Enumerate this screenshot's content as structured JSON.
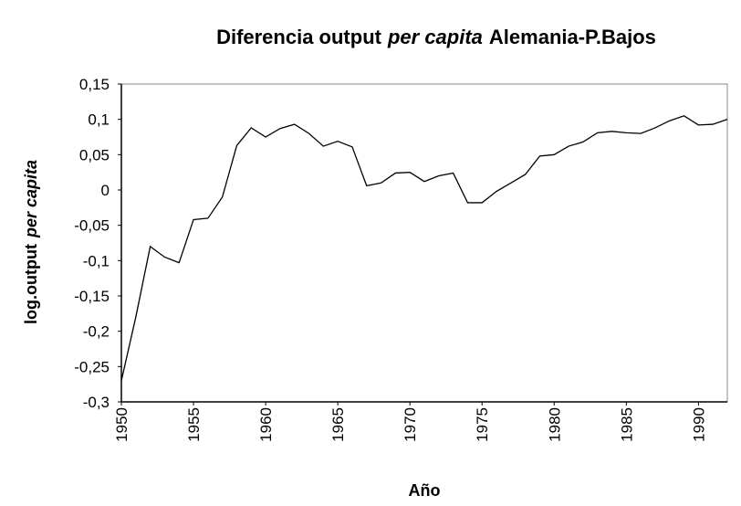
{
  "chart_data": {
    "type": "line",
    "title": [
      "Diferencia output",
      "per capita",
      "Alemania-P.Bajos"
    ],
    "xlabel": "Año",
    "ylabel": [
      "log.output",
      "per capita"
    ],
    "x": [
      1950,
      1951,
      1952,
      1953,
      1954,
      1955,
      1956,
      1957,
      1958,
      1959,
      1960,
      1961,
      1962,
      1963,
      1964,
      1965,
      1966,
      1967,
      1968,
      1969,
      1970,
      1971,
      1972,
      1973,
      1974,
      1975,
      1976,
      1977,
      1978,
      1979,
      1980,
      1981,
      1982,
      1983,
      1984,
      1985,
      1986,
      1987,
      1988,
      1989,
      1990,
      1991,
      1992
    ],
    "series": [
      {
        "color": "#000000",
        "values": [
          -0.27,
          -0.18,
          -0.08,
          -0.095,
          -0.103,
          -0.042,
          -0.04,
          -0.01,
          0.063,
          0.088,
          0.075,
          0.087,
          0.093,
          0.08,
          0.062,
          0.069,
          0.061,
          0.006,
          0.01,
          0.024,
          0.025,
          0.012,
          0.02,
          0.024,
          -0.018,
          -0.018,
          -0.002,
          0.01,
          0.022,
          0.048,
          0.05,
          0.062,
          0.068,
          0.081,
          0.083,
          0.081,
          0.08,
          0.088,
          0.098,
          0.105,
          0.092,
          0.093,
          0.1
        ]
      }
    ],
    "xlim": [
      1950,
      1992
    ],
    "xticks": [
      1950,
      1955,
      1960,
      1965,
      1970,
      1975,
      1980,
      1985,
      1990
    ],
    "ylim": [
      -0.3,
      0.15
    ],
    "yticks": [
      {
        "value": -0.3,
        "label": "-0,3"
      },
      {
        "value": -0.25,
        "label": "-0,25"
      },
      {
        "value": -0.2,
        "label": "-0,2"
      },
      {
        "value": -0.15,
        "label": "-0,15"
      },
      {
        "value": -0.1,
        "label": "-0,1"
      },
      {
        "value": -0.05,
        "label": "-0,05"
      },
      0,
      {
        "value": 0.05,
        "label": "0,05"
      },
      {
        "value": 0.1,
        "label": "0,1"
      },
      {
        "value": 0.15,
        "label": "0,15"
      }
    ]
  }
}
